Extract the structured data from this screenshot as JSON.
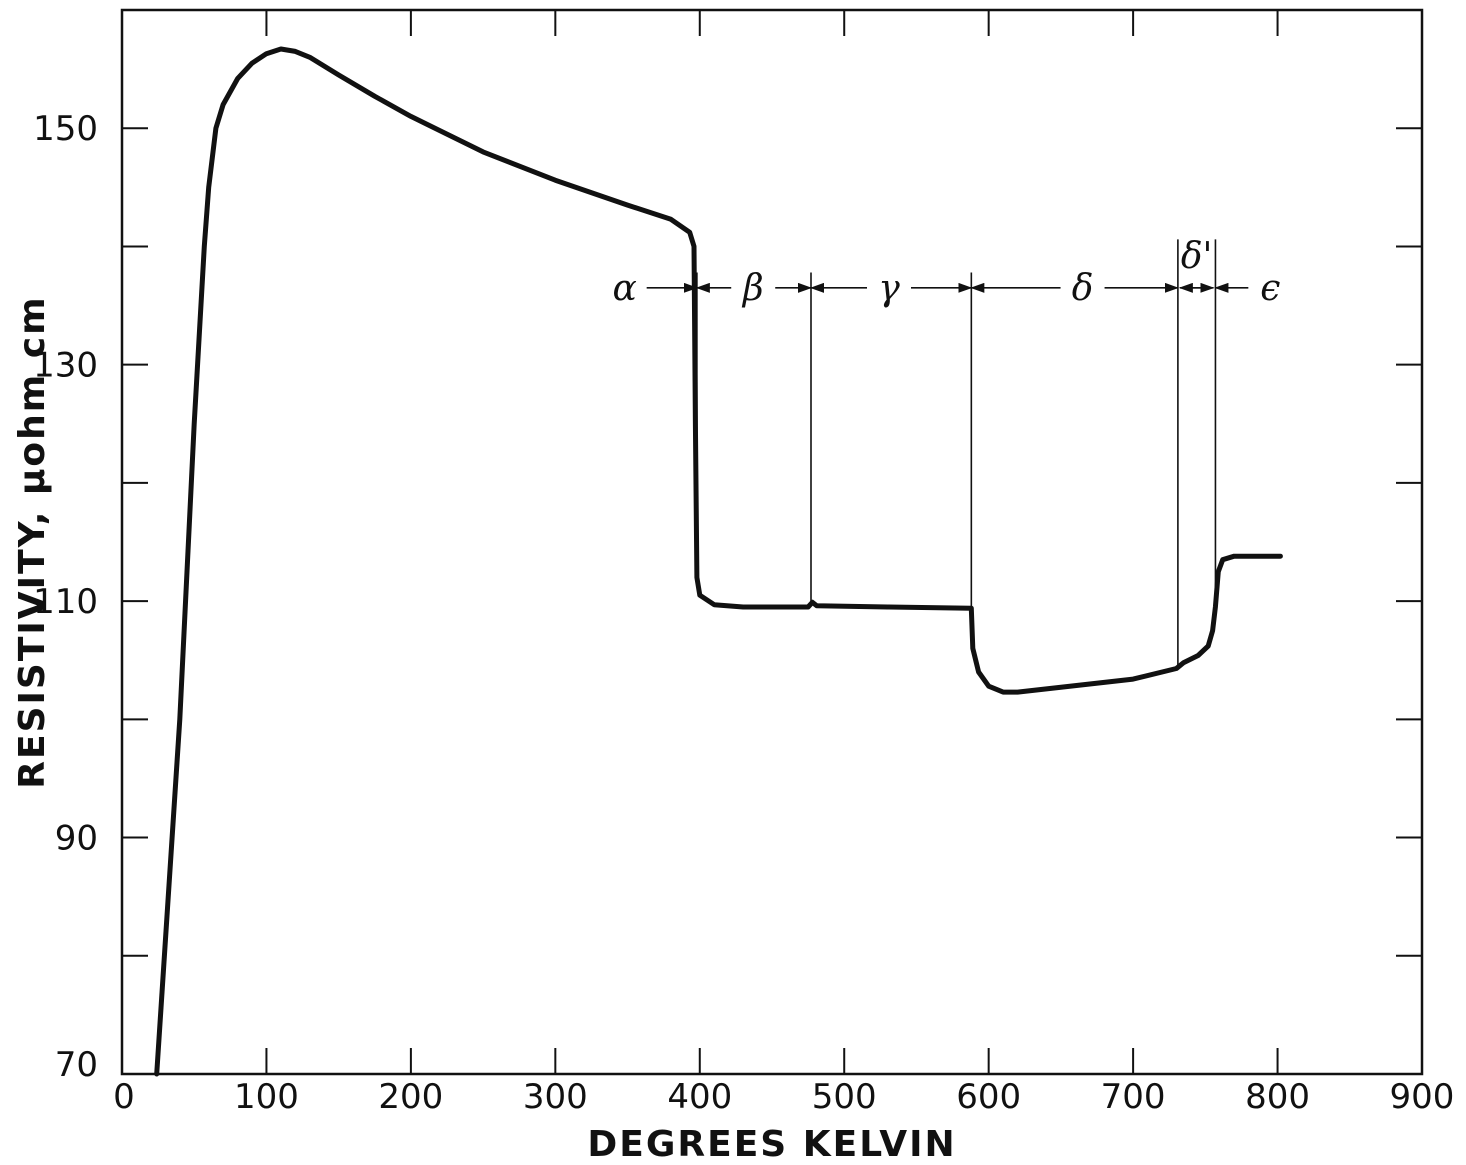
{
  "chart_data": {
    "type": "line",
    "title": "",
    "xlabel": "DEGREES KELVIN",
    "ylabel": "RESISTIVITY, μohm cm",
    "xlim": [
      0,
      900
    ],
    "ylim": [
      70,
      160
    ],
    "x_ticks": [
      0,
      100,
      200,
      300,
      400,
      500,
      600,
      700,
      800,
      900
    ],
    "x_tick_labels": [
      "0",
      "100",
      "200",
      "300",
      "400",
      "500",
      "600",
      "700",
      "800",
      "900"
    ],
    "y_ticks": [
      70,
      90,
      110,
      130,
      150
    ],
    "y_tick_labels": [
      "70",
      "90",
      "110",
      "130",
      "150"
    ],
    "y_minor_ticks": [
      80,
      100,
      120,
      140
    ],
    "grid": false,
    "line_color": "#111111",
    "series": [
      {
        "points": [
          [
            24,
            70
          ],
          [
            40,
            100
          ],
          [
            50,
            125
          ],
          [
            57,
            140
          ],
          [
            60,
            145
          ],
          [
            65,
            150
          ],
          [
            70,
            152
          ],
          [
            80,
            154.2
          ],
          [
            90,
            155.5
          ],
          [
            100,
            156.3
          ],
          [
            110,
            156.7
          ],
          [
            120,
            156.5
          ],
          [
            130,
            156
          ],
          [
            150,
            154.5
          ],
          [
            175,
            152.7
          ],
          [
            200,
            151
          ],
          [
            250,
            148
          ],
          [
            300,
            145.6
          ],
          [
            350,
            143.5
          ],
          [
            380,
            142.3
          ],
          [
            393,
            141.2
          ],
          [
            396,
            140
          ],
          [
            397,
            125
          ],
          [
            398,
            112
          ],
          [
            400,
            110.5
          ],
          [
            410,
            109.7
          ],
          [
            430,
            109.5
          ],
          [
            475,
            109.5
          ],
          [
            478,
            109.9
          ],
          [
            481,
            109.6
          ],
          [
            530,
            109.5
          ],
          [
            588,
            109.4
          ],
          [
            589,
            106
          ],
          [
            593,
            104
          ],
          [
            600,
            102.8
          ],
          [
            610,
            102.3
          ],
          [
            620,
            102.3
          ],
          [
            700,
            103.4
          ],
          [
            730,
            104.3
          ],
          [
            735,
            104.8
          ],
          [
            745,
            105.4
          ],
          [
            752,
            106.2
          ],
          [
            755,
            107.5
          ],
          [
            757,
            109.5
          ],
          [
            759,
            112.5
          ],
          [
            762,
            113.5
          ],
          [
            770,
            113.8
          ],
          [
            802,
            113.8
          ]
        ]
      }
    ],
    "phase_boundaries": [
      398,
      477,
      588,
      731,
      757
    ],
    "phase_labels": [
      {
        "label": "α",
        "x": 348
      },
      {
        "label": "β",
        "x": 437
      },
      {
        "label": "γ",
        "x": 531
      },
      {
        "label": "δ",
        "x": 665
      },
      {
        "label": "δ'",
        "x": 744
      },
      {
        "label": "ϵ",
        "x": 795
      }
    ],
    "arrow_extent": [
      360,
      790
    ],
    "phase_arrow_y": 136.5,
    "phase_line_top_y": 137.8,
    "delta_prime_label_y": 139.2,
    "delta_prime_line_top_y": 140.6
  }
}
